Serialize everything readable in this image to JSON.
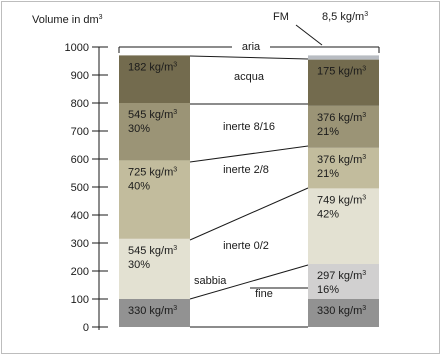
{
  "header": {
    "volume_label": "Volume in dm",
    "volume_sup": "3",
    "fm_label": "FM",
    "fm_value": "8,5 kg/m",
    "fm_sup": "3"
  },
  "axis": {
    "ticks": [
      "0",
      "100",
      "200",
      "300",
      "400",
      "500",
      "600",
      "700",
      "800",
      "900",
      "1000"
    ]
  },
  "left_column": [
    {
      "from": 0,
      "to": 100,
      "color": "#929292",
      "line1": "330 kg/m",
      "sup": "3",
      "line2": ""
    },
    {
      "from": 100,
      "to": 315,
      "color": "#e3e1d2",
      "line1": "545 kg/m",
      "sup": "3",
      "line2": "30%"
    },
    {
      "from": 315,
      "to": 595,
      "color": "#c2bc9d",
      "line1": "725 kg/m",
      "sup": "3",
      "line2": "40%"
    },
    {
      "from": 595,
      "to": 800,
      "color": "#9b9476",
      "line1": "545 kg/m",
      "sup": "3",
      "line2": "30%"
    },
    {
      "from": 800,
      "to": 970,
      "color": "#736b4e",
      "line1": "182 kg/m",
      "sup": "3",
      "line2": ""
    }
  ],
  "right_column": [
    {
      "from": 0,
      "to": 100,
      "color": "#929292",
      "line1": "330 kg/m",
      "sup": "3",
      "line2": ""
    },
    {
      "from": 100,
      "to": 225,
      "color": "#d1d0d0",
      "line1": "297 kg/m",
      "sup": "3",
      "line2": "16%"
    },
    {
      "from": 225,
      "to": 495,
      "color": "#e3e1d2",
      "line1": "749 kg/m",
      "sup": "3",
      "line2": "42%"
    },
    {
      "from": 495,
      "to": 640,
      "color": "#c2bc9d",
      "line1": "376 kg/m",
      "sup": "3",
      "line2": "21%"
    },
    {
      "from": 640,
      "to": 790,
      "color": "#9b9476",
      "line1": "376 kg/m",
      "sup": "3",
      "line2": "21%"
    },
    {
      "from": 790,
      "to": 955,
      "color": "#736b4e",
      "line1": "175 kg/m",
      "sup": "3",
      "line2": ""
    },
    {
      "from": 955,
      "to": 970,
      "color": "#b8bcc2",
      "line1": "",
      "sup": "",
      "line2": ""
    }
  ],
  "middle_labels": {
    "aria": "aria",
    "acqua": "acqua",
    "inerte_8_16": "inerte 8/16",
    "inerte_2_8": "inerte 2/8",
    "inerte_0_2": "inerte 0/2",
    "sabbia": "sabbia",
    "fine": "fine"
  }
}
